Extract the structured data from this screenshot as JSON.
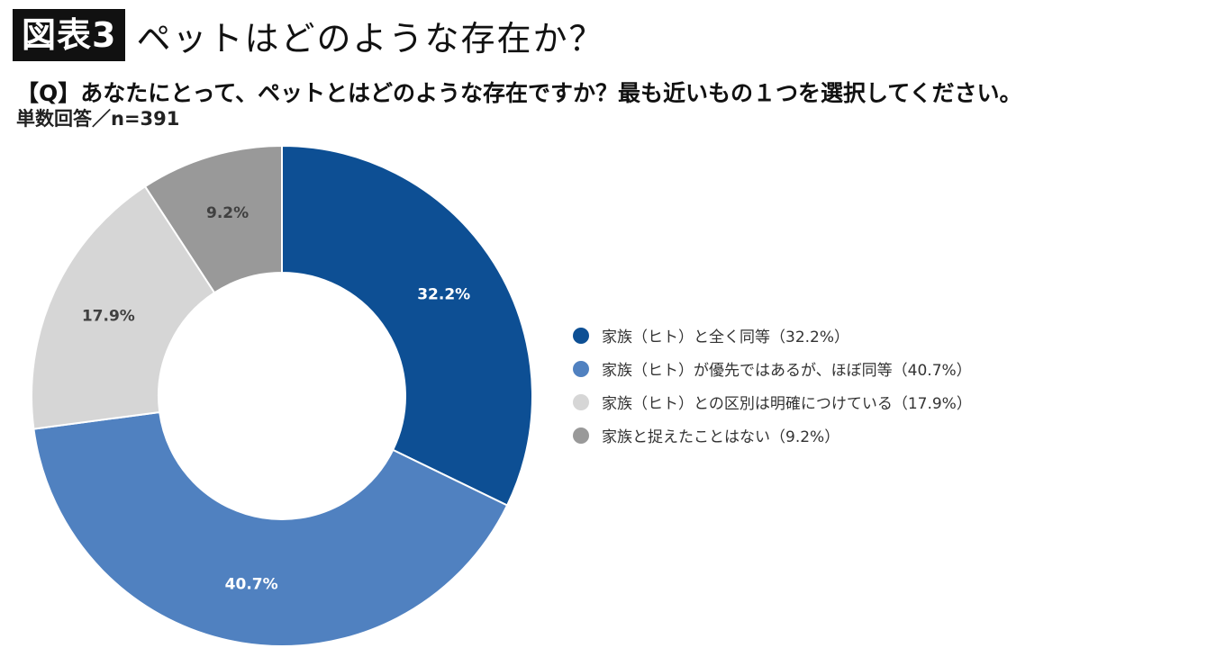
{
  "header": {
    "badge": "図表3",
    "title": "ペットはどのような存在か？"
  },
  "question": "【Q】あなたにとって、ペットとはどのような存在ですか？最も近いもの１つを選択してください。",
  "subtitle": "単数回答／n=391",
  "chart_data": {
    "type": "pie",
    "donut": true,
    "start_angle_deg": 0,
    "direction": "clockwise",
    "legend_position": "right",
    "slices": [
      {
        "label": "家族（ヒト）と全く同等（32.2%）",
        "value": 32.2,
        "value_label": "32.2%",
        "color": "#0d4f94",
        "label_color": "#ffffff"
      },
      {
        "label": "家族（ヒト）が優先ではあるが、ほぼ同等（40.7%）",
        "value": 40.7,
        "value_label": "40.7%",
        "color": "#5081c0",
        "label_color": "#ffffff"
      },
      {
        "label": "家族（ヒト）との区別は明確につけている（17.9%）",
        "value": 17.9,
        "value_label": "17.9%",
        "color": "#d6d6d6",
        "label_color": "#404040"
      },
      {
        "label": "家族と捉えたことはない（9.2%）",
        "value": 9.2,
        "value_label": "9.2%",
        "color": "#999999",
        "label_color": "#404040"
      }
    ]
  }
}
